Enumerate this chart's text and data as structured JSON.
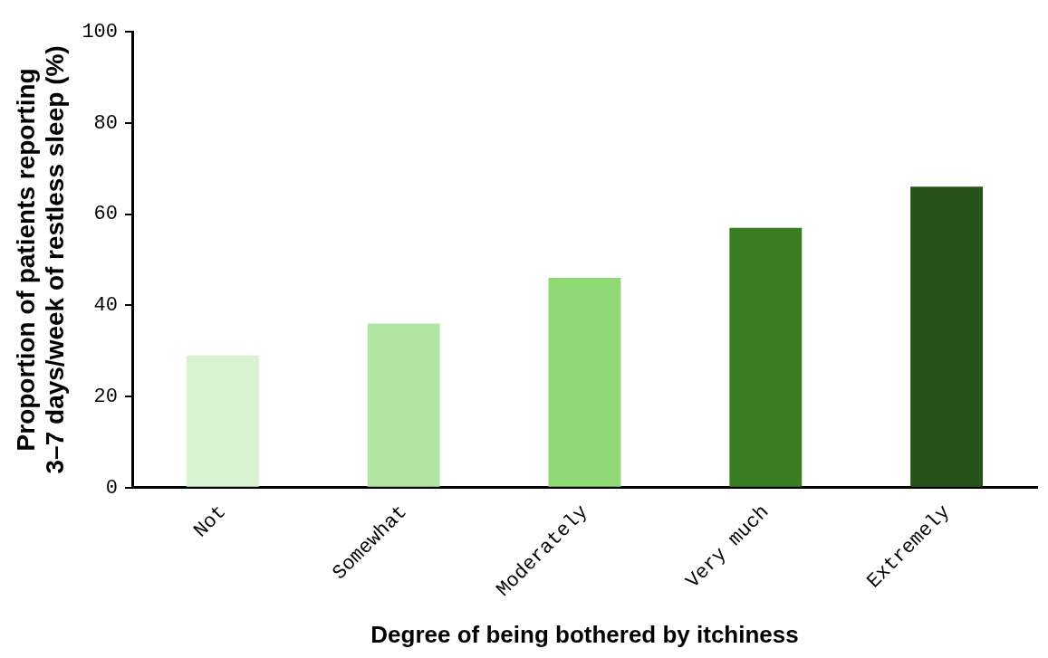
{
  "chart_data": {
    "type": "bar",
    "xlabel": "Degree of being bothered by itchiness",
    "ylabel": "Proportion of patients reporting\n3–7 days/week of restless sleep (%)",
    "categories": [
      "Not",
      "Somewhat",
      "Moderately",
      "Very much",
      "Extremely"
    ],
    "values": [
      29,
      36,
      46,
      57,
      66
    ],
    "colors": [
      "#d9f2d2",
      "#b3e5a3",
      "#8fd975",
      "#3b7d22",
      "#27531a"
    ],
    "ylim": [
      0,
      100
    ],
    "yticks": [
      0,
      20,
      40,
      60,
      80,
      100
    ],
    "grid": false,
    "legend": false
  }
}
